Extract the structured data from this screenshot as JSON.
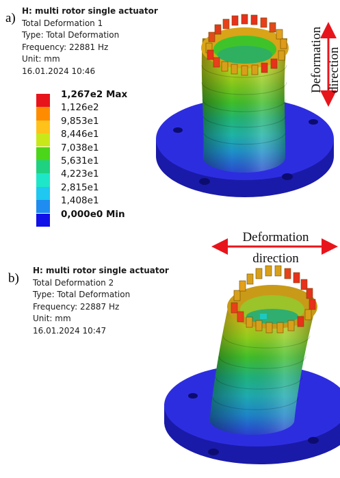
{
  "panel_a": {
    "letter": "a)",
    "title": "H: multi rotor single actuator",
    "lines": [
      "Total Deformation 1",
      "Type: Total Deformation",
      "Frequency: 22881 Hz",
      "Unit: mm",
      "16.01.2024 10:46"
    ],
    "arrow_label_line1": "Deformation",
    "arrow_label_line2": "direction"
  },
  "panel_b": {
    "letter": "b)",
    "title": "H: multi rotor single actuator",
    "lines": [
      "Total Deformation 2",
      "Type: Total Deformation",
      "Frequency: 22887 Hz",
      "Unit: mm",
      "16.01.2024 10:47"
    ],
    "arrow_label_line1": "Deformation",
    "arrow_label_line2": "direction"
  },
  "legend": {
    "entries": [
      {
        "label": "1,267e2 Max",
        "color": "#e8141b",
        "bold": true
      },
      {
        "label": "1,126e2",
        "color": "#ff8c00"
      },
      {
        "label": "9,853e1",
        "color": "#ffc21a"
      },
      {
        "label": "8,446e1",
        "color": "#c9e81a"
      },
      {
        "label": "7,038e1",
        "color": "#4bd61a"
      },
      {
        "label": "5,631e1",
        "color": "#1ed282"
      },
      {
        "label": "4,223e1",
        "color": "#1ee6c8"
      },
      {
        "label": "2,815e1",
        "color": "#1ec8f0"
      },
      {
        "label": "1,408e1",
        "color": "#1e8cf0"
      },
      {
        "label": "0,000e0 Min",
        "color": "#1010e8",
        "bold": true
      }
    ]
  },
  "colors": {
    "base": "#2828d8",
    "arrow": "#e8141b"
  }
}
